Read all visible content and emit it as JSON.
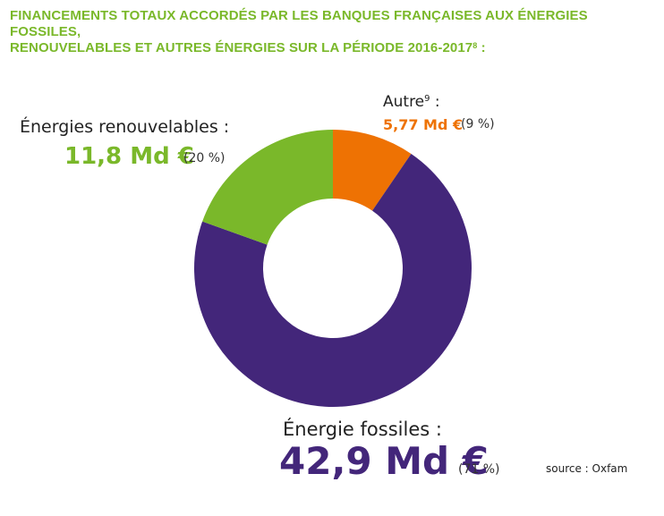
{
  "title": {
    "line1": "FINANCEMENTS TOTAUX ACCORDÉS PAR LES BANQUES FRANÇAISES AUX ÉNERGIES FOSSILES,",
    "line2": "RENOUVELABLES ET AUTRES ÉNERGIES SUR LA PÉRIODE 2016-2017",
    "footnote": "8",
    "tail": " :"
  },
  "labels": {
    "renew": {
      "category": "Énergies renouvelables :",
      "value": "11,8 Md €",
      "percent": "(20 %)"
    },
    "other": {
      "category": "Autre",
      "footnote": "9",
      "category_tail": " :",
      "value": "5,77 Md €",
      "percent": "(9 %)"
    },
    "fossil": {
      "category": "Énergie fossiles :",
      "value": "42,9 Md €",
      "percent": "(71 %)"
    }
  },
  "source": "source : Oxfam",
  "chart_data": {
    "type": "pie",
    "style": "donut",
    "unit": "Md €",
    "categories": [
      "Autre",
      "Énergie fossiles",
      "Énergies renouvelables"
    ],
    "values": [
      5.77,
      42.9,
      11.8
    ],
    "percents": [
      9,
      71,
      20
    ],
    "colors": [
      "#ee7203",
      "#43267a",
      "#7ab82a"
    ]
  }
}
